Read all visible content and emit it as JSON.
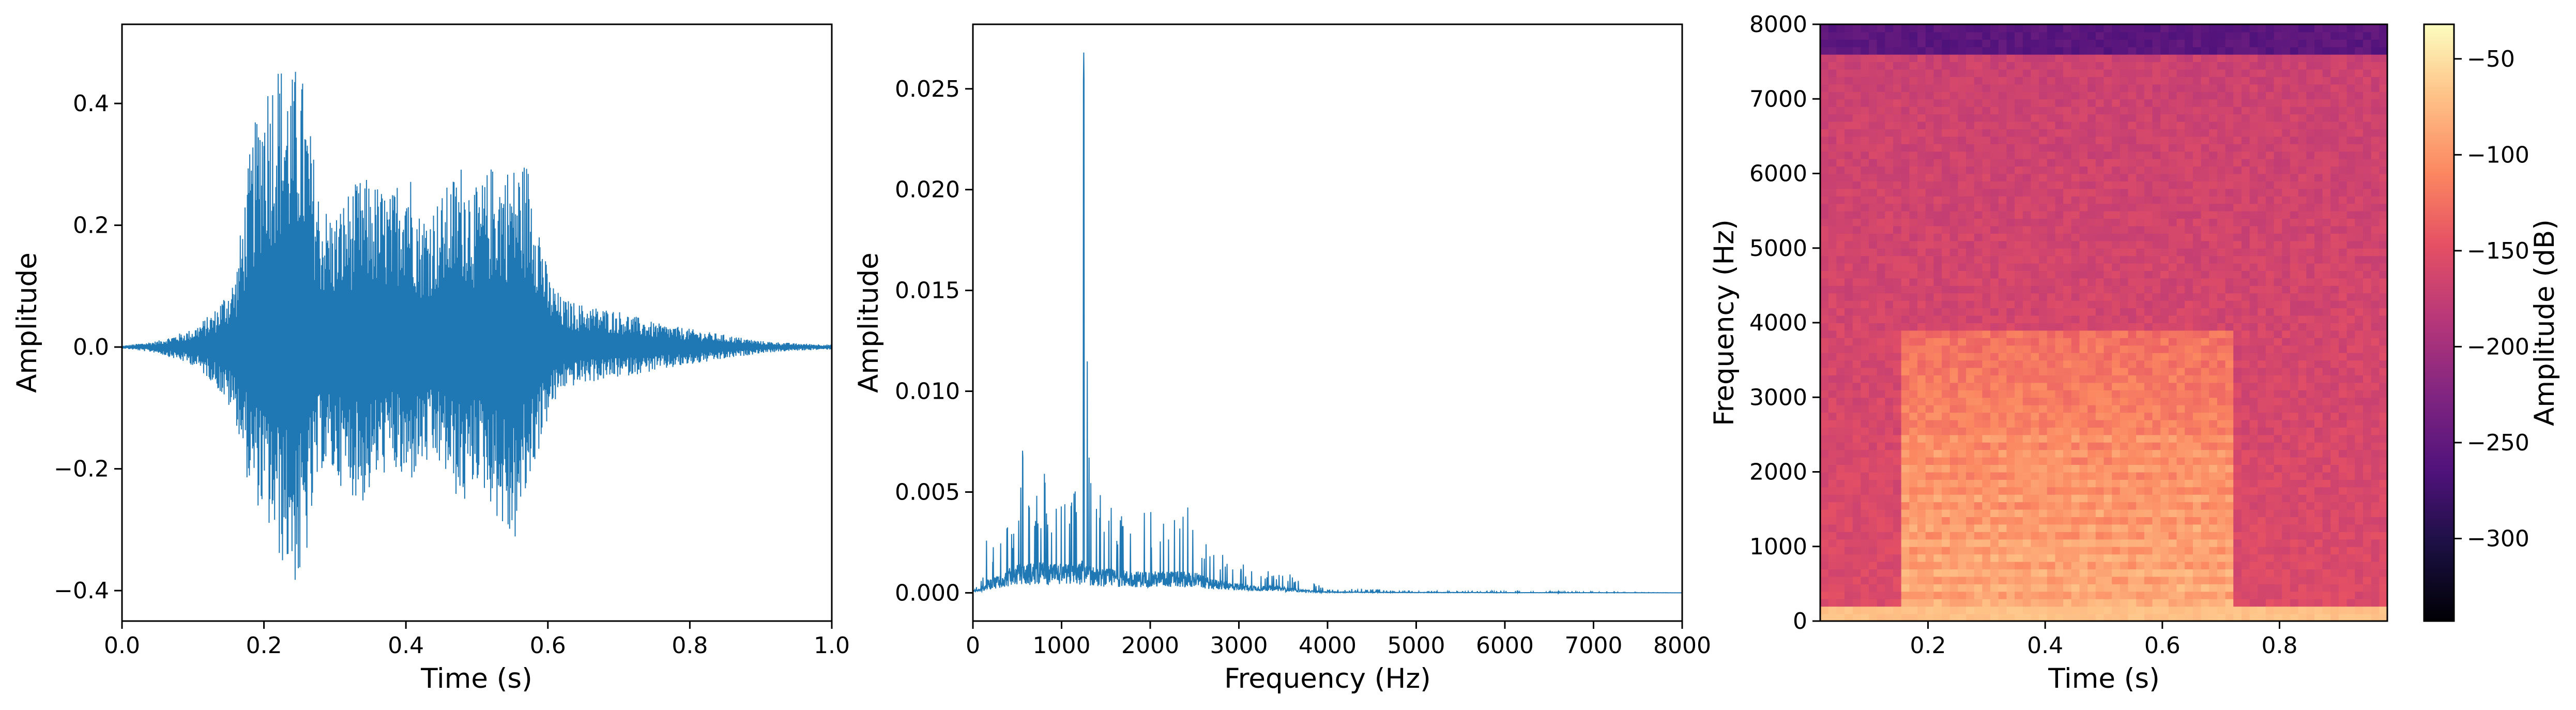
{
  "chart_data": [
    {
      "type": "line",
      "title": "",
      "xlabel": "Time (s)",
      "ylabel": "Amplitude",
      "xlim": [
        0.0,
        1.0
      ],
      "ylim": [
        -0.45,
        0.53
      ],
      "xticks": [
        0.0,
        0.2,
        0.4,
        0.6,
        0.8,
        1.0
      ],
      "xtick_labels": [
        "0.0",
        "0.2",
        "0.4",
        "0.6",
        "0.8",
        "1.0"
      ],
      "yticks": [
        -0.4,
        -0.2,
        0.0,
        0.2,
        0.4
      ],
      "ytick_labels": [
        "−0.4",
        "−0.2",
        "0.0",
        "0.2",
        "0.4"
      ],
      "grid": false,
      "series": [
        {
          "color": "#1f77b4",
          "envelope": {
            "t": [
              0.0,
              0.05,
              0.1,
              0.13,
              0.16,
              0.18,
              0.2,
              0.22,
              0.24,
              0.25,
              0.26,
              0.28,
              0.3,
              0.32,
              0.34,
              0.36,
              0.38,
              0.4,
              0.42,
              0.45,
              0.48,
              0.5,
              0.52,
              0.55,
              0.57,
              0.58,
              0.6,
              0.62,
              0.65,
              0.7,
              0.75,
              0.8,
              0.85,
              0.9,
              0.95,
              1.0
            ],
            "max": [
              0.002,
              0.01,
              0.03,
              0.06,
              0.12,
              0.32,
              0.45,
              0.48,
              0.45,
              0.48,
              0.4,
              0.24,
              0.22,
              0.26,
              0.28,
              0.27,
              0.25,
              0.33,
              0.22,
              0.25,
              0.31,
              0.26,
              0.3,
              0.3,
              0.31,
              0.28,
              0.12,
              0.08,
              0.07,
              0.06,
              0.04,
              0.03,
              0.02,
              0.01,
              0.006,
              0.004
            ],
            "min": [
              -0.002,
              -0.01,
              -0.03,
              -0.06,
              -0.12,
              -0.24,
              -0.28,
              -0.35,
              -0.38,
              -0.41,
              -0.35,
              -0.2,
              -0.22,
              -0.24,
              -0.26,
              -0.22,
              -0.2,
              -0.24,
              -0.2,
              -0.2,
              -0.27,
              -0.22,
              -0.26,
              -0.34,
              -0.25,
              -0.2,
              -0.12,
              -0.07,
              -0.06,
              -0.05,
              -0.04,
              -0.03,
              -0.02,
              -0.01,
              -0.006,
              -0.004
            ]
          }
        }
      ]
    },
    {
      "type": "line",
      "title": "",
      "xlabel": "Frequency (Hz)",
      "ylabel": "Amplitude",
      "xlim": [
        0,
        8000
      ],
      "ylim": [
        -0.0014,
        0.0282
      ],
      "xticks": [
        0,
        1000,
        2000,
        3000,
        4000,
        5000,
        6000,
        7000,
        8000
      ],
      "xtick_labels": [
        "0",
        "1000",
        "2000",
        "3000",
        "4000",
        "5000",
        "6000",
        "7000",
        "8000"
      ],
      "yticks": [
        0.0,
        0.005,
        0.01,
        0.015,
        0.02,
        0.025
      ],
      "ytick_labels": [
        "0.000",
        "0.005",
        "0.010",
        "0.015",
        "0.020",
        "0.025"
      ],
      "grid": false,
      "series": [
        {
          "color": "#1f77b4",
          "envelope": {
            "f": [
              0,
              100,
              150,
              200,
              300,
              400,
              500,
              550,
              600,
              700,
              800,
              900,
              1000,
              1100,
              1200,
              1250,
              1280,
              1300,
              1400,
              1500,
              1600,
              1800,
              2000,
              2200,
              2400,
              2500,
              2600,
              2800,
              3000,
              3200,
              3400,
              3600,
              3800,
              4000,
              4500,
              5000,
              5500,
              6000,
              7000,
              8000
            ],
            "max": [
              0.0002,
              0.0008,
              0.0032,
              0.0025,
              0.003,
              0.0035,
              0.004,
              0.009,
              0.005,
              0.0045,
              0.0062,
              0.005,
              0.0045,
              0.005,
              0.006,
              0.0268,
              0.0155,
              0.008,
              0.0065,
              0.005,
              0.0045,
              0.004,
              0.0042,
              0.0042,
              0.0048,
              0.004,
              0.0025,
              0.002,
              0.0015,
              0.0012,
              0.0011,
              0.0009,
              0.0006,
              0.0002,
              0.0002,
              0.0001,
              0.0001,
              0.0001,
              5e-05,
              0.0
            ],
            "base": [
              0.0001,
              0.0002,
              0.0005,
              0.0006,
              0.0008,
              0.001,
              0.0012,
              0.0012,
              0.0012,
              0.0013,
              0.0013,
              0.0012,
              0.0012,
              0.0012,
              0.0012,
              0.0015,
              0.0012,
              0.0012,
              0.001,
              0.001,
              0.001,
              0.0009,
              0.0009,
              0.0009,
              0.0009,
              0.0009,
              0.0007,
              0.0005,
              0.0004,
              0.0003,
              0.0003,
              0.0002,
              0.0001,
              5e-05,
              3e-05,
              2e-05,
              2e-05,
              1e-05,
              1e-05,
              0.0
            ]
          }
        }
      ]
    },
    {
      "type": "heatmap",
      "title": "",
      "xlabel": "Time (s)",
      "ylabel": "Frequency (Hz)",
      "xlim": [
        0.016,
        0.984
      ],
      "ylim": [
        0,
        8000
      ],
      "xticks": [
        0.2,
        0.4,
        0.6,
        0.8
      ],
      "xtick_labels": [
        "0.2",
        "0.4",
        "0.6",
        "0.8"
      ],
      "yticks": [
        0,
        1000,
        2000,
        3000,
        4000,
        5000,
        6000,
        7000,
        8000
      ],
      "ytick_labels": [
        "0",
        "1000",
        "2000",
        "3000",
        "4000",
        "5000",
        "6000",
        "7000",
        "8000"
      ],
      "colormap": "magma",
      "colorbar": {
        "label": "Amplitude (dB)",
        "range": [
          -343,
          -32
        ],
        "ticks": [
          -300,
          -250,
          -200,
          -150,
          -100,
          -50
        ],
        "tick_labels": [
          "−300",
          "−250",
          "−200",
          "−150",
          "−100",
          "−50"
        ]
      },
      "regions": {
        "voiced_band": {
          "t": [
            0.15,
            0.72
          ],
          "f": [
            0,
            3900
          ],
          "level_db": -90
        },
        "background_db": -170,
        "top_band": {
          "f": [
            7600,
            8000
          ],
          "level_db": -255
        }
      }
    }
  ]
}
